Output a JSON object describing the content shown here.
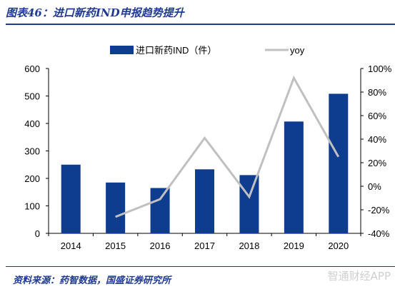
{
  "figure": {
    "title": "图表46：进口新药IND申报趋势提升",
    "source": "资料来源：药智数据，国盛证券研究所",
    "watermark": "智通财经APP"
  },
  "chart_data": {
    "type": "bar",
    "title": "",
    "categories": [
      "2014",
      "2015",
      "2016",
      "2017",
      "2018",
      "2019",
      "2020"
    ],
    "series": [
      {
        "name": "进口新药IND（件）",
        "type": "bar",
        "axis": "left",
        "color": "#0e3d8f",
        "values": [
          250,
          185,
          165,
          233,
          212,
          407,
          508
        ]
      },
      {
        "name": "yoy",
        "type": "line",
        "axis": "right",
        "color": "#c0c0c0",
        "values": [
          null,
          -26,
          -11,
          41,
          -9,
          92,
          25
        ]
      }
    ],
    "y_left": {
      "min": 0,
      "max": 600,
      "step": 100,
      "ticks": [
        "0",
        "100",
        "200",
        "300",
        "400",
        "500",
        "600"
      ]
    },
    "y_right": {
      "min": -40,
      "max": 100,
      "step": 20,
      "ticks": [
        "-40%",
        "-20%",
        "0%",
        "20%",
        "40%",
        "60%",
        "80%",
        "100%"
      ]
    },
    "grid": false,
    "legend_position": "top"
  }
}
